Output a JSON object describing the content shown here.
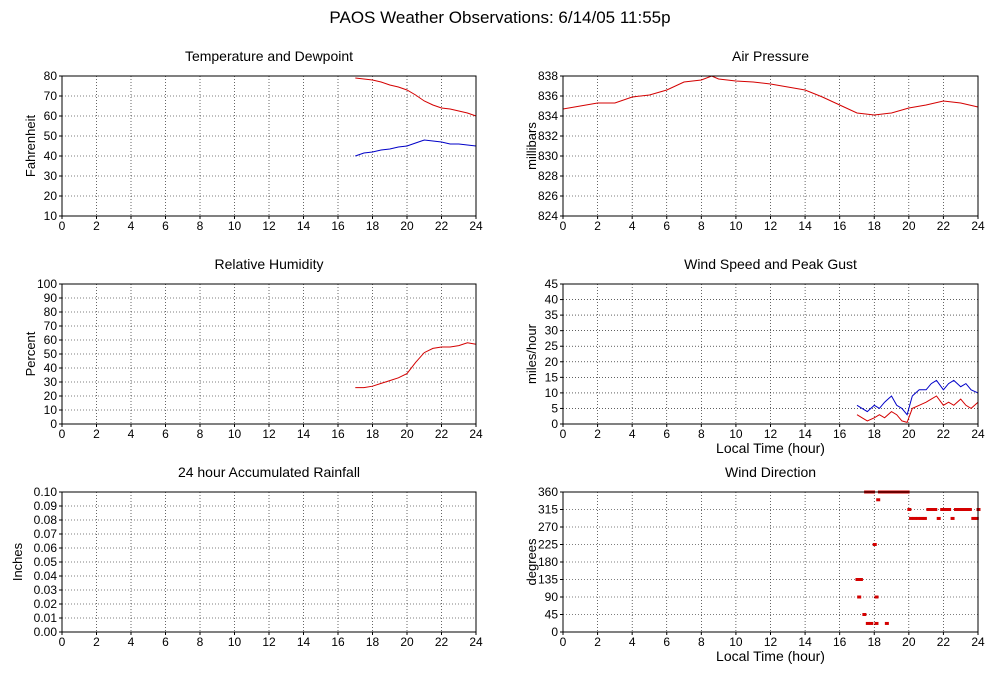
{
  "title": "PAOS Weather Observations: 6/14/05 11:55p",
  "colors": {
    "primary": "#d40000",
    "secondary": "#0000c8",
    "grid": "#000000"
  },
  "chart_data": [
    {
      "id": "temp",
      "type": "line",
      "title": "Temperature and Dewpoint",
      "xlabel": "",
      "ylabel": "Fahrenheit",
      "xlim": [
        0,
        24
      ],
      "ylim": [
        10,
        80
      ],
      "xticks": [
        0,
        2,
        4,
        6,
        8,
        10,
        12,
        14,
        16,
        18,
        20,
        22,
        24
      ],
      "yticks": [
        10,
        20,
        30,
        40,
        50,
        60,
        70,
        80
      ],
      "series": [
        {
          "name": "Temperature",
          "color": "#d40000",
          "points": [
            [
              17.0,
              79
            ],
            [
              17.5,
              78.5
            ],
            [
              18.0,
              78
            ],
            [
              18.5,
              77
            ],
            [
              19.0,
              75.5
            ],
            [
              19.5,
              74.5
            ],
            [
              20.0,
              73
            ],
            [
              20.5,
              70.5
            ],
            [
              21.0,
              67.5
            ],
            [
              21.5,
              65.5
            ],
            [
              22.0,
              64
            ],
            [
              22.5,
              63.5
            ],
            [
              23.0,
              62.5
            ],
            [
              23.5,
              61.5
            ],
            [
              24.0,
              60
            ]
          ]
        },
        {
          "name": "Dewpoint",
          "color": "#0000c8",
          "points": [
            [
              17.0,
              40
            ],
            [
              17.5,
              41.5
            ],
            [
              18.0,
              42
            ],
            [
              18.5,
              43
            ],
            [
              19.0,
              43.5
            ],
            [
              19.5,
              44.5
            ],
            [
              20.0,
              45
            ],
            [
              20.5,
              46.5
            ],
            [
              21.0,
              48
            ],
            [
              21.5,
              47.5
            ],
            [
              22.0,
              47
            ],
            [
              22.5,
              46
            ],
            [
              23.0,
              46
            ],
            [
              23.5,
              45.5
            ],
            [
              24.0,
              45
            ]
          ]
        }
      ]
    },
    {
      "id": "pressure",
      "type": "line",
      "title": "Air Pressure",
      "xlabel": "",
      "ylabel": "millibars",
      "xlim": [
        0,
        24
      ],
      "ylim": [
        824,
        838
      ],
      "xticks": [
        0,
        2,
        4,
        6,
        8,
        10,
        12,
        14,
        16,
        18,
        20,
        22,
        24
      ],
      "yticks": [
        824,
        826,
        828,
        830,
        832,
        834,
        836,
        838
      ],
      "series": [
        {
          "name": "Pressure",
          "color": "#d40000",
          "points": [
            [
              0,
              834.7
            ],
            [
              1,
              835.0
            ],
            [
              2,
              835.3
            ],
            [
              3,
              835.3
            ],
            [
              4,
              835.9
            ],
            [
              5,
              836.1
            ],
            [
              6,
              836.6
            ],
            [
              7,
              837.4
            ],
            [
              8,
              837.6
            ],
            [
              8.6,
              838.0
            ],
            [
              9,
              837.7
            ],
            [
              10,
              837.5
            ],
            [
              11,
              837.4
            ],
            [
              12,
              837.2
            ],
            [
              13,
              836.9
            ],
            [
              14,
              836.6
            ],
            [
              15,
              835.9
            ],
            [
              16,
              835.1
            ],
            [
              17,
              834.3
            ],
            [
              18,
              834.1
            ],
            [
              19,
              834.3
            ],
            [
              20,
              834.8
            ],
            [
              21,
              835.1
            ],
            [
              22,
              835.5
            ],
            [
              23,
              835.3
            ],
            [
              24,
              834.9
            ]
          ]
        }
      ]
    },
    {
      "id": "humidity",
      "type": "line",
      "title": "Relative Humidity",
      "xlabel": "",
      "ylabel": "Percent",
      "xlim": [
        0,
        24
      ],
      "ylim": [
        0,
        100
      ],
      "xticks": [
        0,
        2,
        4,
        6,
        8,
        10,
        12,
        14,
        16,
        18,
        20,
        22,
        24
      ],
      "yticks": [
        0,
        10,
        20,
        30,
        40,
        50,
        60,
        70,
        80,
        90,
        100
      ],
      "series": [
        {
          "name": "Relative Humidity",
          "color": "#d40000",
          "points": [
            [
              17.0,
              26
            ],
            [
              17.5,
              26
            ],
            [
              18.0,
              27
            ],
            [
              18.5,
              29
            ],
            [
              19.0,
              31
            ],
            [
              19.5,
              33
            ],
            [
              20.0,
              36
            ],
            [
              20.5,
              44
            ],
            [
              21.0,
              51
            ],
            [
              21.5,
              54
            ],
            [
              22.0,
              55
            ],
            [
              22.5,
              55
            ],
            [
              23.0,
              56
            ],
            [
              23.5,
              58
            ],
            [
              24.0,
              57
            ]
          ]
        }
      ]
    },
    {
      "id": "wind",
      "type": "line",
      "title": "Wind Speed and Peak Gust",
      "xlabel": "Local Time (hour)",
      "ylabel": "miles/hour",
      "xlim": [
        0,
        24
      ],
      "ylim": [
        0,
        45
      ],
      "xticks": [
        0,
        2,
        4,
        6,
        8,
        10,
        12,
        14,
        16,
        18,
        20,
        22,
        24
      ],
      "yticks": [
        0,
        5,
        10,
        15,
        20,
        25,
        30,
        35,
        40,
        45
      ],
      "series": [
        {
          "name": "Wind Speed",
          "color": "#d40000",
          "points": [
            [
              17.0,
              3
            ],
            [
              17.3,
              2
            ],
            [
              17.6,
              1
            ],
            [
              18.0,
              2
            ],
            [
              18.3,
              3
            ],
            [
              18.6,
              2
            ],
            [
              19.0,
              4
            ],
            [
              19.3,
              3
            ],
            [
              19.6,
              1
            ],
            [
              19.9,
              0.5
            ],
            [
              20.2,
              5
            ],
            [
              20.6,
              6
            ],
            [
              21.0,
              7
            ],
            [
              21.3,
              8
            ],
            [
              21.6,
              9
            ],
            [
              22.0,
              6
            ],
            [
              22.3,
              7
            ],
            [
              22.6,
              6
            ],
            [
              23.0,
              8
            ],
            [
              23.3,
              6
            ],
            [
              23.6,
              5
            ],
            [
              24.0,
              7
            ]
          ]
        },
        {
          "name": "Peak Gust",
          "color": "#0000c8",
          "points": [
            [
              17.0,
              6
            ],
            [
              17.3,
              5
            ],
            [
              17.6,
              4
            ],
            [
              18.0,
              6
            ],
            [
              18.3,
              5
            ],
            [
              18.6,
              7
            ],
            [
              19.0,
              9
            ],
            [
              19.3,
              6
            ],
            [
              19.6,
              5
            ],
            [
              19.9,
              3
            ],
            [
              20.2,
              9
            ],
            [
              20.6,
              11
            ],
            [
              21.0,
              11
            ],
            [
              21.3,
              13
            ],
            [
              21.6,
              14
            ],
            [
              22.0,
              11
            ],
            [
              22.3,
              13
            ],
            [
              22.6,
              14
            ],
            [
              23.0,
              12
            ],
            [
              23.3,
              13
            ],
            [
              23.6,
              11
            ],
            [
              24.0,
              10
            ]
          ]
        }
      ]
    },
    {
      "id": "rain",
      "type": "line",
      "title": "24 hour Accumulated Rainfall",
      "xlabel": "",
      "ylabel": "Inches",
      "xlim": [
        0,
        24
      ],
      "ylim": [
        0,
        0.1
      ],
      "xticks": [
        0,
        2,
        4,
        6,
        8,
        10,
        12,
        14,
        16,
        18,
        20,
        22,
        24
      ],
      "yticks": [
        0,
        0.01,
        0.02,
        0.03,
        0.04,
        0.05,
        0.06,
        0.07,
        0.08,
        0.09,
        0.1
      ],
      "ytick_labels": [
        "0.00",
        "0.01",
        "0.02",
        "0.03",
        "0.04",
        "0.05",
        "0.06",
        "0.07",
        "0.08",
        "0.09",
        "0.10"
      ],
      "series": [
        {
          "name": "Rainfall",
          "color": "#d40000",
          "points": [
            [
              0,
              0
            ],
            [
              24,
              0
            ]
          ]
        }
      ]
    },
    {
      "id": "winddir",
      "type": "scatter",
      "title": "Wind Direction",
      "xlabel": "Local Time (hour)",
      "ylabel": "degrees",
      "xlim": [
        0,
        24
      ],
      "ylim": [
        0,
        360
      ],
      "xticks": [
        0,
        2,
        4,
        6,
        8,
        10,
        12,
        14,
        16,
        18,
        20,
        22,
        24
      ],
      "yticks": [
        0,
        45,
        90,
        135,
        180,
        225,
        270,
        315,
        360
      ],
      "series": [
        {
          "name": "Wind Direction",
          "color": "#d40000",
          "points": [
            [
              17.0,
              135
            ],
            [
              17.1,
              135
            ],
            [
              17.2,
              135
            ],
            [
              17.1,
              90
            ],
            [
              17.4,
              45
            ],
            [
              17.5,
              360
            ],
            [
              17.6,
              360
            ],
            [
              17.7,
              360
            ],
            [
              17.8,
              360
            ],
            [
              17.9,
              360
            ],
            [
              17.6,
              22
            ],
            [
              17.8,
              22
            ],
            [
              18.0,
              225
            ],
            [
              18.1,
              90
            ],
            [
              18.2,
              340
            ],
            [
              18.1,
              22
            ],
            [
              18.3,
              360
            ],
            [
              18.5,
              360
            ],
            [
              18.6,
              360
            ],
            [
              18.7,
              22
            ],
            [
              18.8,
              360
            ],
            [
              19.0,
              360
            ],
            [
              19.2,
              360
            ],
            [
              19.4,
              360
            ],
            [
              19.6,
              360
            ],
            [
              19.8,
              360
            ],
            [
              19.9,
              360
            ],
            [
              20.0,
              315
            ],
            [
              20.1,
              292
            ],
            [
              20.3,
              292
            ],
            [
              20.5,
              292
            ],
            [
              20.7,
              292
            ],
            [
              20.9,
              292
            ],
            [
              21.1,
              315
            ],
            [
              21.3,
              315
            ],
            [
              21.5,
              315
            ],
            [
              21.7,
              292
            ],
            [
              21.9,
              315
            ],
            [
              22.1,
              315
            ],
            [
              22.3,
              315
            ],
            [
              22.5,
              292
            ],
            [
              22.7,
              315
            ],
            [
              22.9,
              315
            ],
            [
              23.1,
              315
            ],
            [
              23.3,
              315
            ],
            [
              23.5,
              315
            ],
            [
              23.7,
              292
            ],
            [
              23.9,
              292
            ],
            [
              24.0,
              315
            ]
          ]
        }
      ]
    }
  ]
}
